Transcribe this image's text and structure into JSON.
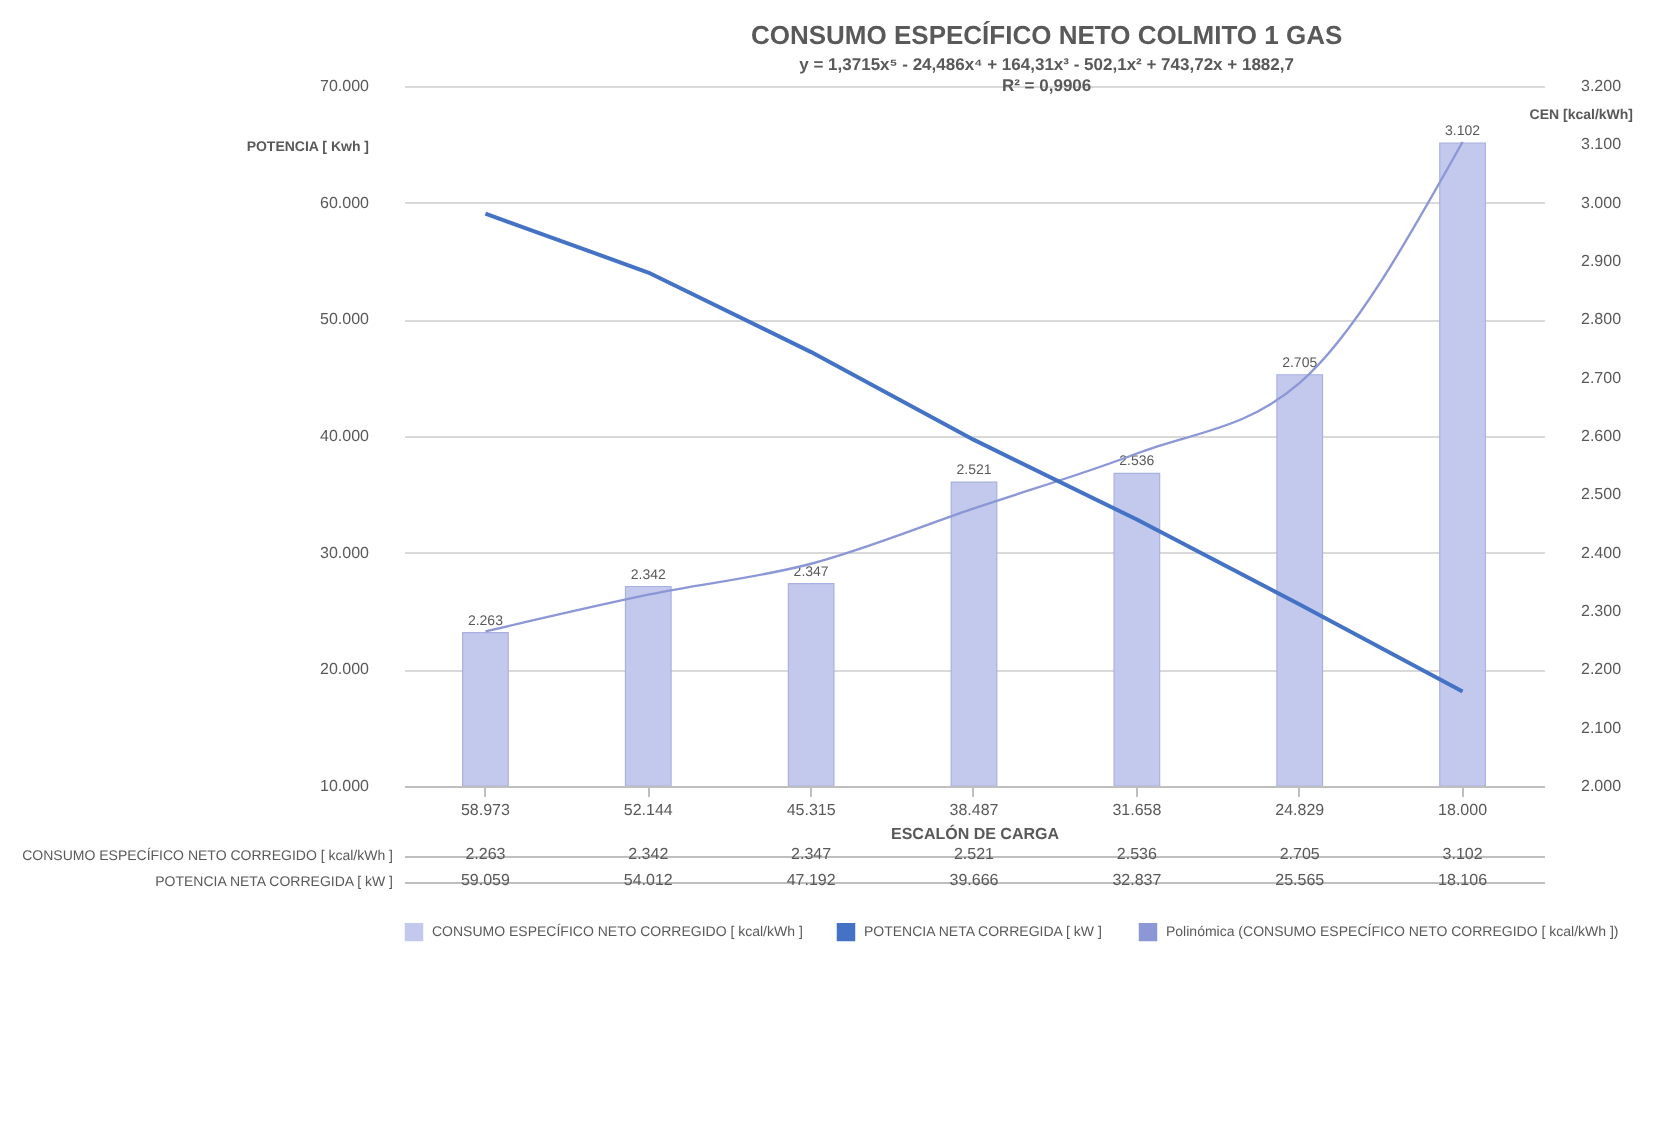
{
  "chart_data": {
    "type": "bar",
    "title": "CONSUMO ESPECÍFICO NETO COLMITO 1 GAS",
    "subtitle": [
      "y = 1,3715x⁵ - 24,486x⁴ + 164,31x³ - 502,1x² + 743,72x + 1882,7",
      "R² = 0,9906"
    ],
    "xlabel": "ESCALÓN DE CARGA",
    "ylabel": "POTENCIA [ Kwh ]",
    "y2label": "CEN [kcal/kWh]",
    "categories": [
      "58.973",
      "52.144",
      "45.315",
      "38.487",
      "31.658",
      "24.829",
      "18.000"
    ],
    "series": [
      {
        "name": "CONSUMO ESPECÍFICO NETO CORREGIDO [ kcal/kWh ]",
        "axis": "y2",
        "color": "#c3c9ec",
        "values": [
          2263,
          2342,
          2347,
          2521,
          2536,
          2705,
          3102
        ],
        "value_labels": [
          "2.263",
          "2.342",
          "2.347",
          "2.521",
          "2.536",
          "2.705",
          "3.102"
        ]
      },
      {
        "name": "POTENCIA NETA CORREGIDA [ kW ]",
        "type": "line",
        "color": "#4472c4",
        "values": [
          59059,
          54012,
          47192,
          39666,
          32837,
          25565,
          18106
        ],
        "value_labels": [
          "59.059",
          "54.012",
          "47.192",
          "39.666",
          "32.837",
          "25.565",
          "18.106"
        ]
      },
      {
        "name": "Polinómica (CONSUMO ESPECÍFICO NETO CORREGIDO [ kcal/kWh ])",
        "type": "line",
        "axis": "y2",
        "color": "#8c97d6",
        "values": [
          2265,
          2328,
          2381,
          2476,
          2570,
          2691,
          3104
        ]
      }
    ],
    "ylim": [
      10000,
      70000
    ],
    "yticks": [
      {
        "value": 10000,
        "label": "10.000"
      },
      {
        "value": 20000,
        "label": "20.000"
      },
      {
        "value": 30000,
        "label": "30.000"
      },
      {
        "value": 40000,
        "label": "40.000"
      },
      {
        "value": 50000,
        "label": "50.000"
      },
      {
        "value": 60000,
        "label": "60.000"
      },
      {
        "value": 70000,
        "label": "70.000"
      }
    ],
    "y2lim": [
      2000,
      3200
    ],
    "y2ticks": [
      {
        "value": 2000,
        "label": "2.000"
      },
      {
        "value": 2100,
        "label": "2.100"
      },
      {
        "value": 2200,
        "label": "2.200"
      },
      {
        "value": 2300,
        "label": "2.300"
      },
      {
        "value": 2400,
        "label": "2.400"
      },
      {
        "value": 2500,
        "label": "2.500"
      },
      {
        "value": 2600,
        "label": "2.600"
      },
      {
        "value": 2700,
        "label": "2.700"
      },
      {
        "value": 2800,
        "label": "2.800"
      },
      {
        "value": 2900,
        "label": "2.900"
      },
      {
        "value": 3000,
        "label": "3.000"
      },
      {
        "value": 3100,
        "label": "3.100"
      },
      {
        "value": 3200,
        "label": "3.200"
      }
    ],
    "grid": "y",
    "legend": "bottom",
    "marker": "none"
  }
}
